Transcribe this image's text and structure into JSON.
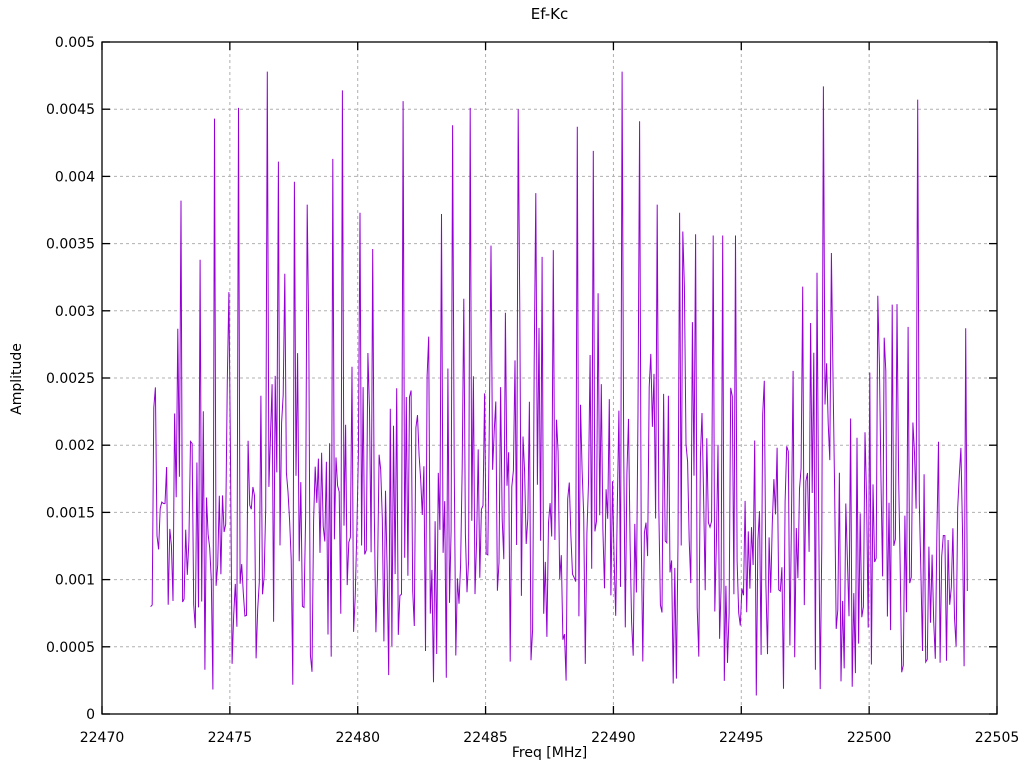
{
  "page_title": "Ef-Kc",
  "chart_data": {
    "type": "line",
    "title": "Ef-Kc",
    "xlabel": "Freq [MHz]",
    "ylabel": "Amplitude",
    "xlim": [
      22470,
      22505
    ],
    "ylim": [
      0,
      0.005
    ],
    "x_ticks": [
      {
        "v": 22470,
        "label": "22470"
      },
      {
        "v": 22475,
        "label": "22475"
      },
      {
        "v": 22480,
        "label": "22480"
      },
      {
        "v": 22485,
        "label": "22485"
      },
      {
        "v": 22490,
        "label": "22490"
      },
      {
        "v": 22495,
        "label": "22495"
      },
      {
        "v": 22500,
        "label": "22500"
      },
      {
        "v": 22505,
        "label": "22505"
      }
    ],
    "y_ticks": [
      {
        "v": 0,
        "label": "0"
      },
      {
        "v": 0.0005,
        "label": "0.0005"
      },
      {
        "v": 0.001,
        "label": "0.001"
      },
      {
        "v": 0.0015,
        "label": "0.0015"
      },
      {
        "v": 0.002,
        "label": "0.002"
      },
      {
        "v": 0.0025,
        "label": "0.0025"
      },
      {
        "v": 0.003,
        "label": "0.003"
      },
      {
        "v": 0.0035,
        "label": "0.0035"
      },
      {
        "v": 0.004,
        "label": "0.004"
      },
      {
        "v": 0.0045,
        "label": "0.0045"
      },
      {
        "v": 0.005,
        "label": "0.005"
      }
    ],
    "grid": {
      "show": true,
      "color": "#b0b0b0",
      "dash": "3,3"
    },
    "legend": {
      "show": false
    },
    "axis_color": "#000000",
    "tick_length": 8,
    "series": [
      {
        "name": "Ef-Kc",
        "color": "#9400D3",
        "style": "noisy-line",
        "x_start": 22471.9,
        "x_step": 0.0625,
        "n_points": 512,
        "seed": 1337,
        "distribution": {
          "type": "rayleigh",
          "min": 5e-05,
          "max": 0.00478,
          "sigma_segments": [
            {
              "until": 22494.0,
              "sigma": 0.00125
            },
            {
              "until": 22497.6,
              "sigma": 0.00102
            },
            {
              "until": 22501.9,
              "sigma": 0.00115
            },
            {
              "until": 22504.0,
              "sigma": 0.00088
            }
          ]
        },
        "peaks": [
          [
            22472.1,
            0.00243
          ],
          [
            22473.1,
            0.00382
          ],
          [
            22473.85,
            0.00338
          ],
          [
            22474.4,
            0.00443
          ],
          [
            22475.35,
            0.00451
          ],
          [
            22476.45,
            0.00478
          ],
          [
            22476.9,
            0.00411
          ],
          [
            22477.5,
            0.00396
          ],
          [
            22478.0,
            0.00379
          ],
          [
            22479.0,
            0.00413
          ],
          [
            22479.4,
            0.00464
          ],
          [
            22480.1,
            0.00373
          ],
          [
            22480.6,
            0.00346
          ],
          [
            22481.8,
            0.00456
          ],
          [
            22483.7,
            0.00438
          ],
          [
            22484.4,
            0.00451
          ],
          [
            22486.3,
            0.0045
          ],
          [
            22488.6,
            0.00437
          ],
          [
            22489.4,
            0.00313
          ],
          [
            22491.0,
            0.00441
          ],
          [
            22491.7,
            0.00379
          ],
          [
            22492.7,
            0.00359
          ],
          [
            22493.2,
            0.00357
          ],
          [
            22493.9,
            0.00356
          ],
          [
            22494.3,
            0.00356
          ],
          [
            22494.8,
            0.00356
          ],
          [
            22497.4,
            0.00318
          ],
          [
            22498.2,
            0.00467
          ],
          [
            22498.5,
            0.00343
          ],
          [
            22500.0,
            0.00254
          ],
          [
            22501.1,
            0.00305
          ],
          [
            22501.5,
            0.00288
          ],
          [
            22503.8,
            0.00287
          ]
        ]
      }
    ]
  }
}
